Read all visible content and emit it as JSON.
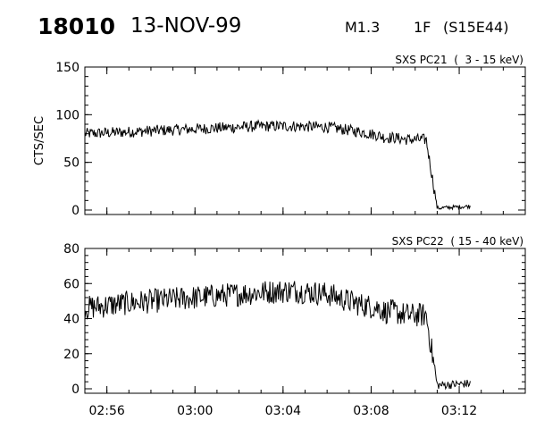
{
  "header": {
    "flare_id": "18010",
    "date": "13-NOV-99",
    "goes_class": "M1.3",
    "h_alpha_class": "1F",
    "location": "(S15E44)"
  },
  "chart_data": [
    {
      "type": "line",
      "title": "SXS PC21  (  3 - 15 keV)",
      "ylabel": "CTS/SEC",
      "ylim": [
        0,
        150
      ],
      "yticks": [
        0,
        50,
        100,
        150
      ],
      "xlim": [
        "02:55",
        "03:15"
      ],
      "xticks": [
        "02:56",
        "03:00",
        "03:04",
        "03:08",
        "03:12"
      ],
      "show_x_tick_labels": false,
      "grid": false,
      "series": [
        {
          "values_description_free": true,
          "x_minutes_after_0255": [
            0,
            2,
            4,
            6,
            8,
            9.5,
            11,
            12.5,
            13.4,
            13.6,
            14,
            14.6,
            15.1,
            15.5,
            16.0,
            17.5
          ],
          "x": [
            "02:55",
            "02:57",
            "02:59",
            "03:01",
            "03:03",
            "03:04:30",
            "03:06",
            "03:07:30",
            "03:08:24",
            "03:08:36",
            "03:09",
            "03:09:36",
            "03:10:06",
            "03:10:30",
            "03:11",
            "03:12:30"
          ],
          "y": [
            80,
            82,
            84,
            86,
            88,
            88,
            87,
            82,
            78,
            76,
            76,
            74,
            74,
            74,
            2,
            4
          ],
          "noise": 6
        }
      ]
    },
    {
      "type": "line",
      "title": "SXS PC22  ( 15 - 40 keV)",
      "ylabel": "",
      "ylim": [
        0,
        80
      ],
      "yticks": [
        0,
        20,
        40,
        60,
        80
      ],
      "xlim": [
        "02:55",
        "03:15"
      ],
      "xticks": [
        "02:56",
        "03:00",
        "03:04",
        "03:08",
        "03:12"
      ],
      "show_x_tick_labels": true,
      "grid": false,
      "series": [
        {
          "x": [
            "02:55",
            "02:57",
            "02:59",
            "03:01",
            "03:03",
            "03:04:30",
            "03:06",
            "03:07:30",
            "03:08:24",
            "03:08:36",
            "03:09",
            "03:09:36",
            "03:10:06",
            "03:10:30",
            "03:11",
            "03:12:30"
          ],
          "y": [
            46,
            49,
            51,
            53,
            55,
            56,
            54,
            48,
            46,
            44,
            44,
            42,
            42,
            42,
            2,
            3
          ],
          "noise": 7
        }
      ]
    }
  ]
}
